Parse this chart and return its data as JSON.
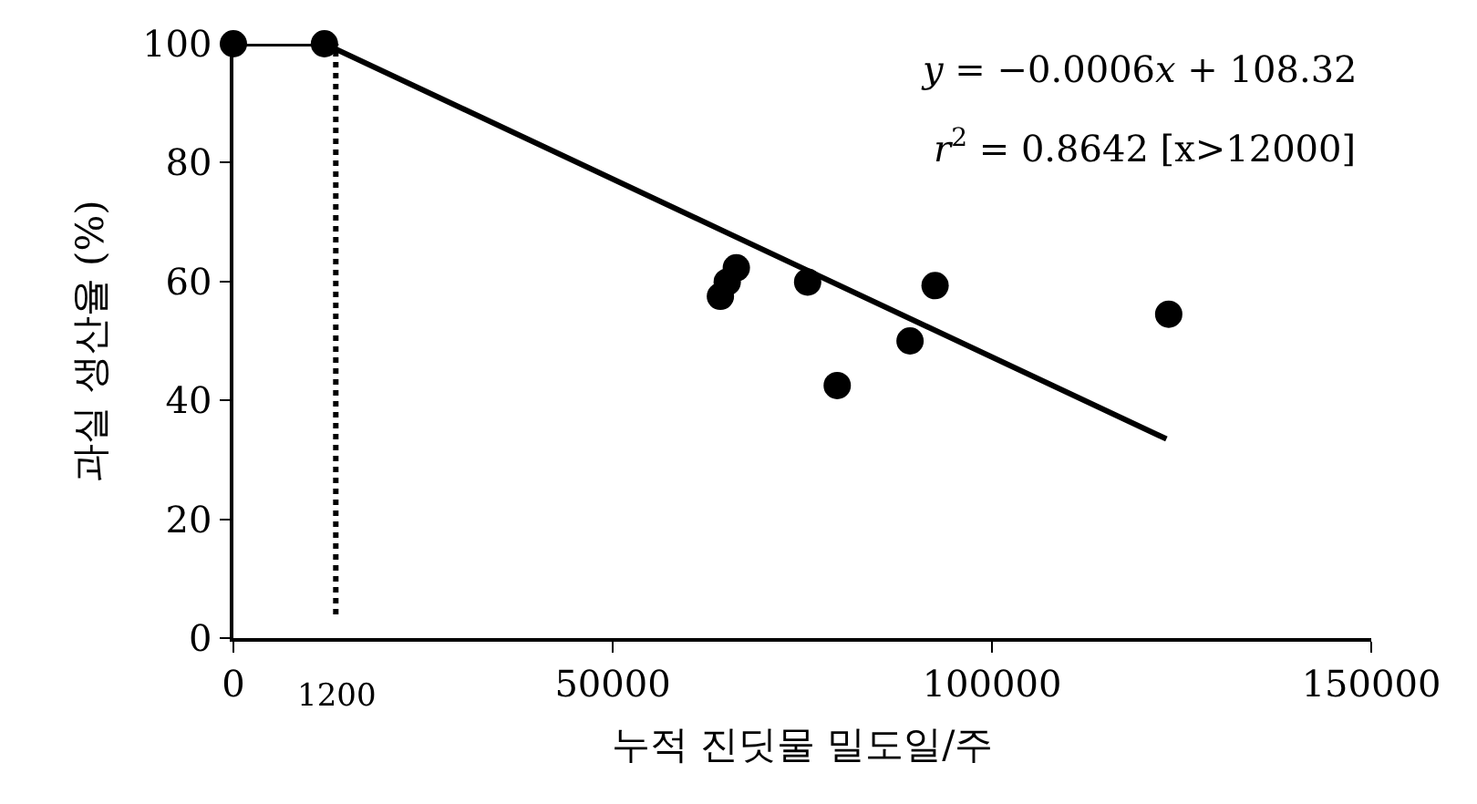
{
  "chart_data": {
    "type": "scatter",
    "xlabel": "누적 진딧물 밀도일/주",
    "ylabel": "과실 생산율 (%)",
    "xlim": [
      0,
      150000
    ],
    "xticks": [
      0,
      50000,
      100000,
      150000
    ],
    "ylim": [
      0,
      100
    ],
    "yticks": [
      0,
      20,
      40,
      60,
      80,
      100
    ],
    "series": [
      {
        "color": "#000000",
        "marker": "circle",
        "x": [
          0,
          12000,
          64200,
          65100,
          66300,
          75700,
          79600,
          89200,
          92500,
          123300
        ],
        "values": [
          100,
          100,
          57.5,
          59.9,
          62.3,
          59.9,
          42.5,
          50,
          59.3,
          54.5
        ]
      },
      {
        "type": "line",
        "color": "#000000",
        "line_style": "solid",
        "x": [
          0,
          12000,
          123000
        ],
        "values": [
          100,
          100,
          33.5
        ]
      }
    ],
    "ref_lines": [
      {
        "axis": "x",
        "value": 13500,
        "color": "#000000",
        "line_style": "dotted"
      }
    ],
    "annotations": [
      "y = −0.0006x + 108.32",
      "r$^{2}$ = 0.8642 [x>12000]",
      "1200"
    ]
  }
}
